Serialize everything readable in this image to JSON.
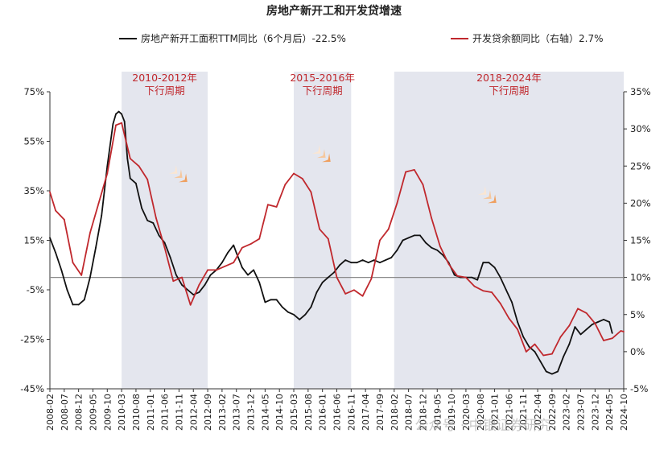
{
  "chart_data": {
    "type": "line",
    "title": "房地产新开工和开发贷增速",
    "watermark": "公众号 · 中银证券研究",
    "x_start": "2008-02",
    "x_end": "2024-10",
    "x_tick_labels": [
      "2008-02",
      "2008-07",
      "2008-12",
      "2009-05",
      "2009-10",
      "2010-03",
      "2010-08",
      "2011-01",
      "2011-06",
      "2011-11",
      "2012-04",
      "2012-09",
      "2013-02",
      "2013-07",
      "2013-12",
      "2014-05",
      "2014-10",
      "2015-03",
      "2015-08",
      "2016-01",
      "2016-06",
      "2016-11",
      "2017-04",
      "2017-09",
      "2018-02",
      "2018-07",
      "2018-12",
      "2019-05",
      "2019-10",
      "2020-03",
      "2020-08",
      "2021-01",
      "2021-06",
      "2021-11",
      "2022-04",
      "2022-09",
      "2023-02",
      "2023-07",
      "2023-12",
      "2024-05",
      "2024-10"
    ],
    "left_axis": {
      "range": [
        -45,
        75
      ],
      "ticks": [
        "75%",
        "55%",
        "35%",
        "15%",
        "-5%",
        "-25%",
        "-45%"
      ],
      "tick_values": [
        75,
        55,
        35,
        15,
        -5,
        -25,
        -45
      ]
    },
    "right_axis": {
      "range": [
        -5,
        35
      ],
      "ticks": [
        "35%",
        "30%",
        "25%",
        "20%",
        "15%",
        "10%",
        "5%",
        "0%",
        "-5%"
      ],
      "tick_values": [
        35,
        30,
        25,
        20,
        15,
        10,
        5,
        0,
        -5
      ]
    },
    "reference_line": {
      "axis": "right",
      "value": 10
    },
    "shaded_periods": [
      {
        "label_line1": "2010-2012年",
        "label_line2": "下行周期",
        "start": "2010-03",
        "end": "2012-09"
      },
      {
        "label_line1": "2015-2016年",
        "label_line2": "下行周期",
        "start": "2015-03",
        "end": "2016-11"
      },
      {
        "label_line1": "2018-2024年",
        "label_line2": "下行周期",
        "start": "2018-02",
        "end": "2024-10"
      }
    ],
    "series": [
      {
        "name": "房地产新开工面积TTM同比（6个月后）-22.5%",
        "axis": "left",
        "color": "#111111",
        "points": [
          [
            "2008-02",
            16
          ],
          [
            "2008-04",
            10
          ],
          [
            "2008-06",
            3
          ],
          [
            "2008-08",
            -5
          ],
          [
            "2008-09",
            -8
          ],
          [
            "2008-10",
            -11
          ],
          [
            "2008-12",
            -11
          ],
          [
            "2009-02",
            -9
          ],
          [
            "2009-04",
            0
          ],
          [
            "2009-06",
            12
          ],
          [
            "2009-08",
            25
          ],
          [
            "2009-10",
            45
          ],
          [
            "2009-12",
            62
          ],
          [
            "2010-01",
            66
          ],
          [
            "2010-02",
            67
          ],
          [
            "2010-03",
            66
          ],
          [
            "2010-04",
            63
          ],
          [
            "2010-05",
            48
          ],
          [
            "2010-06",
            40
          ],
          [
            "2010-08",
            38
          ],
          [
            "2010-10",
            28
          ],
          [
            "2010-12",
            23
          ],
          [
            "2011-02",
            22
          ],
          [
            "2011-04",
            17
          ],
          [
            "2011-06",
            14
          ],
          [
            "2011-08",
            8
          ],
          [
            "2011-10",
            1
          ],
          [
            "2011-12",
            -3
          ],
          [
            "2012-02",
            -5
          ],
          [
            "2012-04",
            -7
          ],
          [
            "2012-06",
            -6
          ],
          [
            "2012-08",
            -3
          ],
          [
            "2012-10",
            1
          ],
          [
            "2012-12",
            3
          ],
          [
            "2013-02",
            6
          ],
          [
            "2013-04",
            10
          ],
          [
            "2013-06",
            13
          ],
          [
            "2013-07",
            10
          ],
          [
            "2013-09",
            4
          ],
          [
            "2013-11",
            1
          ],
          [
            "2014-01",
            3
          ],
          [
            "2014-03",
            -2
          ],
          [
            "2014-05",
            -10
          ],
          [
            "2014-07",
            -9
          ],
          [
            "2014-09",
            -9
          ],
          [
            "2014-11",
            -12
          ],
          [
            "2015-01",
            -14
          ],
          [
            "2015-03",
            -15
          ],
          [
            "2015-05",
            -17
          ],
          [
            "2015-07",
            -15
          ],
          [
            "2015-09",
            -12
          ],
          [
            "2015-11",
            -6
          ],
          [
            "2016-01",
            -2
          ],
          [
            "2016-03",
            0
          ],
          [
            "2016-05",
            2
          ],
          [
            "2016-07",
            5
          ],
          [
            "2016-09",
            7
          ],
          [
            "2016-11",
            6
          ],
          [
            "2017-01",
            6
          ],
          [
            "2017-03",
            7
          ],
          [
            "2017-05",
            6
          ],
          [
            "2017-07",
            7
          ],
          [
            "2017-09",
            6
          ],
          [
            "2017-11",
            7
          ],
          [
            "2018-01",
            8
          ],
          [
            "2018-03",
            11
          ],
          [
            "2018-05",
            15
          ],
          [
            "2018-07",
            16
          ],
          [
            "2018-09",
            17
          ],
          [
            "2018-11",
            17
          ],
          [
            "2019-01",
            14
          ],
          [
            "2019-03",
            12
          ],
          [
            "2019-05",
            11
          ],
          [
            "2019-07",
            9
          ],
          [
            "2019-09",
            6
          ],
          [
            "2019-11",
            1
          ],
          [
            "2020-01",
            0
          ],
          [
            "2020-03",
            0
          ],
          [
            "2020-05",
            0
          ],
          [
            "2020-07",
            -1
          ],
          [
            "2020-09",
            6
          ],
          [
            "2020-11",
            6
          ],
          [
            "2021-01",
            4
          ],
          [
            "2021-03",
            0
          ],
          [
            "2021-05",
            -5
          ],
          [
            "2021-07",
            -10
          ],
          [
            "2021-09",
            -18
          ],
          [
            "2021-11",
            -24
          ],
          [
            "2022-01",
            -28
          ],
          [
            "2022-03",
            -30
          ],
          [
            "2022-05",
            -34
          ],
          [
            "2022-07",
            -38
          ],
          [
            "2022-09",
            -39
          ],
          [
            "2022-11",
            -38
          ],
          [
            "2023-01",
            -32
          ],
          [
            "2023-03",
            -27
          ],
          [
            "2023-05",
            -20
          ],
          [
            "2023-07",
            -23
          ],
          [
            "2023-09",
            -21
          ],
          [
            "2023-11",
            -19
          ],
          [
            "2024-01",
            -18
          ],
          [
            "2024-03",
            -17
          ],
          [
            "2024-05",
            -18
          ],
          [
            "2024-06",
            -22.5
          ]
        ]
      },
      {
        "name": "开发贷余额同比（右轴）2.7%",
        "axis": "right",
        "color": "#c0282d",
        "points": [
          [
            "2008-02",
            21.5
          ],
          [
            "2008-04",
            19
          ],
          [
            "2008-07",
            17.8
          ],
          [
            "2008-10",
            12
          ],
          [
            "2009-01",
            10.3
          ],
          [
            "2009-04",
            16
          ],
          [
            "2009-07",
            20
          ],
          [
            "2009-10",
            24
          ],
          [
            "2010-01",
            30.5
          ],
          [
            "2010-03",
            30.8
          ],
          [
            "2010-06",
            26
          ],
          [
            "2010-09",
            25
          ],
          [
            "2010-12",
            23.2
          ],
          [
            "2011-03",
            18
          ],
          [
            "2011-06",
            14
          ],
          [
            "2011-09",
            9.5
          ],
          [
            "2011-12",
            10
          ],
          [
            "2012-03",
            6.3
          ],
          [
            "2012-06",
            9
          ],
          [
            "2012-09",
            11
          ],
          [
            "2012-12",
            11
          ],
          [
            "2013-03",
            11.5
          ],
          [
            "2013-06",
            12
          ],
          [
            "2013-09",
            14
          ],
          [
            "2013-12",
            14.5
          ],
          [
            "2014-03",
            15.2
          ],
          [
            "2014-06",
            19.8
          ],
          [
            "2014-09",
            19.5
          ],
          [
            "2014-12",
            22.5
          ],
          [
            "2015-03",
            24
          ],
          [
            "2015-06",
            23.3
          ],
          [
            "2015-09",
            21.5
          ],
          [
            "2015-12",
            16.5
          ],
          [
            "2016-03",
            15.2
          ],
          [
            "2016-06",
            10
          ],
          [
            "2016-09",
            7.8
          ],
          [
            "2016-12",
            8.3
          ],
          [
            "2017-03",
            7.5
          ],
          [
            "2017-06",
            9.8
          ],
          [
            "2017-09",
            15
          ],
          [
            "2017-12",
            16.5
          ],
          [
            "2018-03",
            20
          ],
          [
            "2018-06",
            24.2
          ],
          [
            "2018-09",
            24.5
          ],
          [
            "2018-12",
            22.5
          ],
          [
            "2019-03",
            18
          ],
          [
            "2019-06",
            14.2
          ],
          [
            "2019-09",
            11.8
          ],
          [
            "2019-12",
            10.2
          ],
          [
            "2020-03",
            10
          ],
          [
            "2020-06",
            8.8
          ],
          [
            "2020-09",
            8.2
          ],
          [
            "2020-12",
            8
          ],
          [
            "2021-03",
            6.5
          ],
          [
            "2021-06",
            4.5
          ],
          [
            "2021-09",
            3
          ],
          [
            "2021-12",
            0
          ],
          [
            "2022-03",
            1
          ],
          [
            "2022-06",
            -0.5
          ],
          [
            "2022-09",
            -0.3
          ],
          [
            "2022-12",
            2
          ],
          [
            "2023-03",
            3.5
          ],
          [
            "2023-06",
            5.8
          ],
          [
            "2023-09",
            5.2
          ],
          [
            "2023-12",
            3.8
          ],
          [
            "2024-03",
            1.5
          ],
          [
            "2024-06",
            1.8
          ],
          [
            "2024-09",
            2.8
          ],
          [
            "2024-10",
            2.7
          ]
        ]
      }
    ]
  }
}
